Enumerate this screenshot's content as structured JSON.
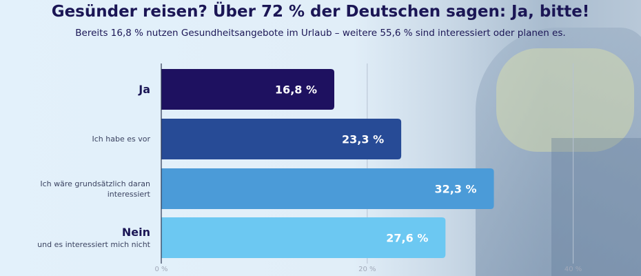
{
  "title": "Gesünder reisen? Über 72 % der Deutschen sagen: Ja, bitte!",
  "subtitle": "Bereits 16,8 % nutzen Gesundheitsangebote im Urlaub – weitere 55,6 % sind interessiert oder planen es.",
  "chart_data": {
    "type": "bar",
    "orientation": "horizontal",
    "categories": [
      {
        "main": "Ja",
        "sub": ""
      },
      {
        "main": "",
        "sub": "Ich habe es vor"
      },
      {
        "main": "",
        "sub": "Ich wäre grundsätzlich daran interessiert"
      },
      {
        "main": "Nein",
        "sub": "und es interessiert mich nicht"
      }
    ],
    "values": [
      16.8,
      23.3,
      32.3,
      27.6
    ],
    "value_labels": [
      "16,8 %",
      "23,3 %",
      "32,3 %",
      "27,6 %"
    ],
    "colors": [
      "#1e1160",
      "#274b96",
      "#4b9bd8",
      "#6cc8f2"
    ],
    "xlim": [
      0,
      40
    ],
    "ticks": [
      0,
      20,
      40
    ],
    "tick_labels": [
      "0 %",
      "20 %",
      "40 %"
    ],
    "grid": true
  }
}
